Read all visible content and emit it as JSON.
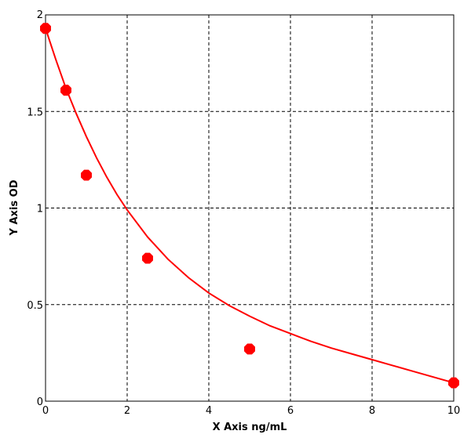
{
  "chart_data": {
    "type": "scatter",
    "title": "",
    "xlabel": "X Axis ng/mL",
    "ylabel": "Y Axis OD",
    "xlim": [
      0,
      10
    ],
    "ylim": [
      0,
      2
    ],
    "x_ticks": [
      0,
      2,
      4,
      6,
      8,
      10
    ],
    "y_ticks": [
      0,
      0.5,
      1,
      1.5,
      2
    ],
    "x_tick_labels": [
      "0",
      "2",
      "4",
      "6",
      "8",
      "10"
    ],
    "y_tick_labels": [
      "0",
      "0.5",
      "1",
      "1.5",
      "2"
    ],
    "grid": true,
    "grid_style": "dashed",
    "series": [
      {
        "kind": "points",
        "color": "#ff0000",
        "x": [
          0,
          0.5,
          1,
          2.5,
          5,
          10
        ],
        "y": [
          1.93,
          1.61,
          1.17,
          0.74,
          0.27,
          0.095
        ]
      },
      {
        "kind": "fitted-curve",
        "color": "#ff0000",
        "x": [
          0,
          0.25,
          0.5,
          0.75,
          1,
          1.25,
          1.5,
          1.75,
          2,
          2.5,
          3,
          3.5,
          4,
          4.5,
          5,
          5.5,
          6,
          6.5,
          7,
          7.5,
          8,
          8.5,
          9,
          9.5,
          10
        ],
        "y": [
          1.93,
          1.77,
          1.62,
          1.49,
          1.37,
          1.26,
          1.16,
          1.07,
          0.99,
          0.85,
          0.735,
          0.64,
          0.56,
          0.495,
          0.44,
          0.39,
          0.35,
          0.31,
          0.275,
          0.245,
          0.215,
          0.185,
          0.155,
          0.125,
          0.095
        ]
      }
    ]
  }
}
